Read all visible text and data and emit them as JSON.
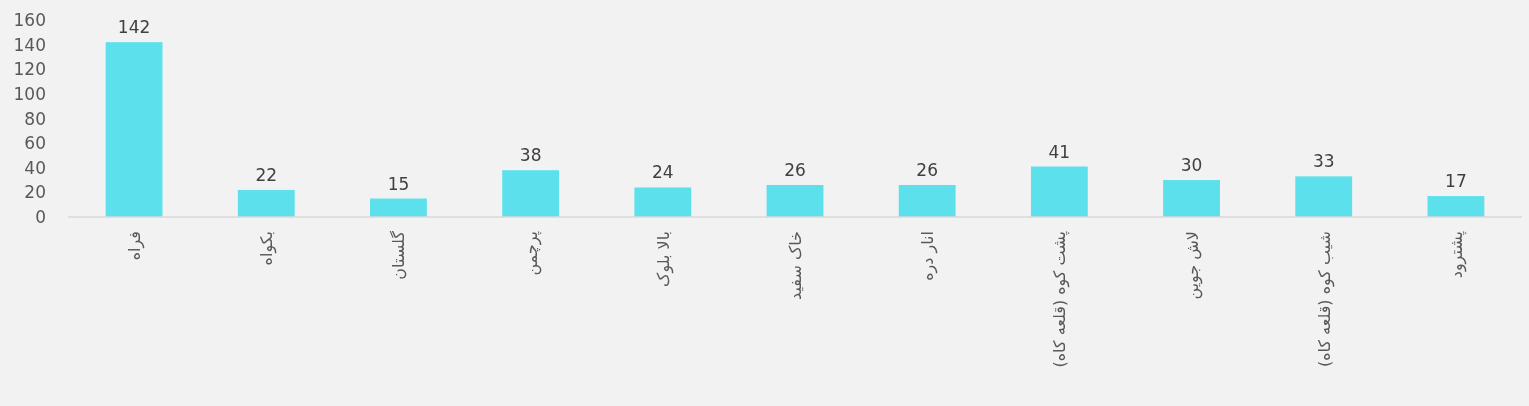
{
  "chart_data": {
    "type": "bar",
    "categories": [
      "فراه",
      "بکواه",
      "گلستان",
      "پرچمن",
      "بالا بلوک",
      "خاک سفید",
      "انار دره",
      "پشت کوه (قلعه کاه)",
      "لاش جوین",
      "شیب کوه (قلعه کاه)",
      "پشترود"
    ],
    "values": [
      142,
      22,
      15,
      38,
      24,
      26,
      26,
      41,
      30,
      33,
      17
    ],
    "color": "#5ce1ec",
    "ylim": [
      0,
      160
    ],
    "yticks": [
      0,
      20,
      40,
      60,
      80,
      100,
      120,
      140,
      160
    ],
    "data_labels": true,
    "grid": false
  }
}
